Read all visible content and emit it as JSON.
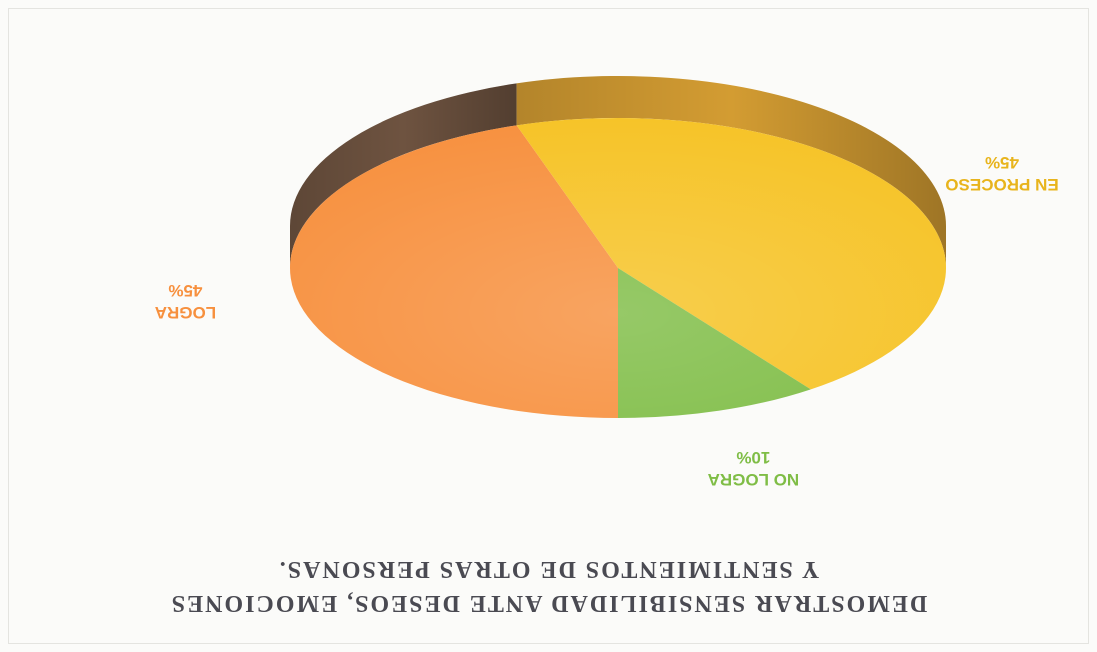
{
  "chart_data": {
    "type": "pie",
    "title": "DEMOSTRAR SENSIBILIDAD ANTE DESEOS, EMOCIONES",
    "subtitle": "Y SENTIMIENTOS DE OTRAS PERSONAS.",
    "orientation": "rotated-180",
    "style": "3d",
    "slices": [
      {
        "label": "LOGRA",
        "value": 45,
        "value_text": "45%",
        "color": "#f7903e",
        "side_color": "#6e5340"
      },
      {
        "label": "EN PROCESO",
        "value": 45,
        "value_text": "45%",
        "color": "#f6c326",
        "side_color": "#d39c32"
      },
      {
        "label": "NO LOGRA",
        "value": 10,
        "value_text": "10%",
        "color": "#7fbd46",
        "side_color": "#5e8a33"
      }
    ]
  }
}
